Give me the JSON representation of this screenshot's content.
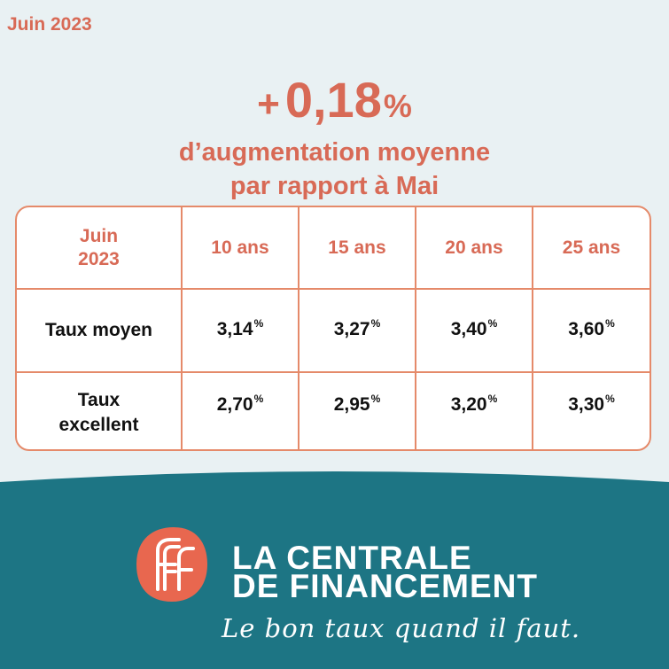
{
  "date_label": "Juin 2023",
  "headline": {
    "plus": "+",
    "value": "0,18",
    "percent": "%",
    "line1": "d’augmentation moyenne",
    "line2": "par rapport à Mai"
  },
  "table": {
    "corner": [
      "Juin",
      "2023"
    ],
    "columns": [
      "10 ans",
      "15 ans",
      "20 ans",
      "25 ans"
    ],
    "rows": [
      {
        "label": [
          "Taux moyen"
        ],
        "values": [
          "3,14",
          "3,27",
          "3,40",
          "3,60"
        ]
      },
      {
        "label": [
          "Taux",
          "excellent"
        ],
        "values": [
          "2,70",
          "2,95",
          "3,20",
          "3,30"
        ]
      }
    ],
    "percent_sign": "%"
  },
  "brand": {
    "line1": "LA CENTRALE",
    "line2": "DE FINANCEMENT",
    "tagline": "Le bon taux quand il faut."
  },
  "colors": {
    "accent": "#d86a56",
    "border": "#e58a6a",
    "footer_teal": "#1d7584",
    "logo_orange": "#e8674f",
    "background": "#e9f1f3"
  },
  "icons": {
    "logo": "lcf-double-f-logo-icon"
  }
}
